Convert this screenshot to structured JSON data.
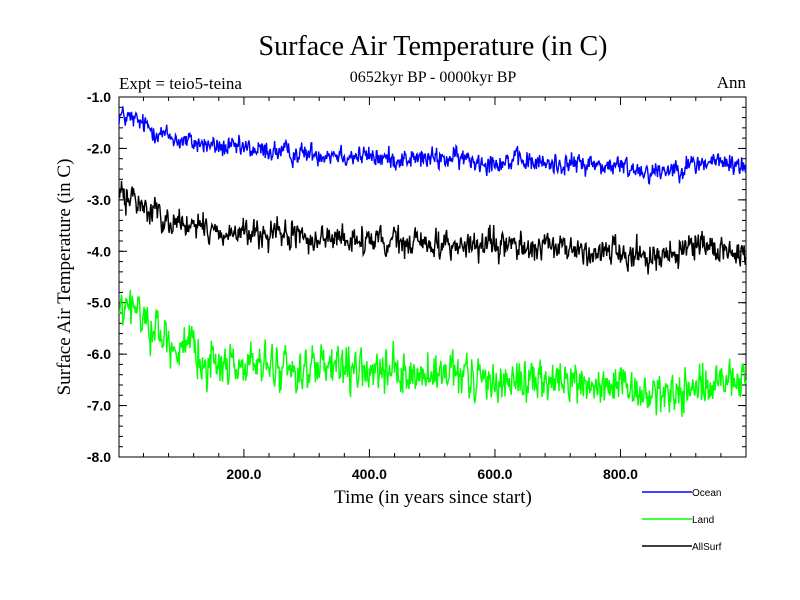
{
  "chart_data": {
    "type": "line",
    "title": "Surface Air Temperature (in C)",
    "subtitle": "0652kyr BP - 0000kyr BP",
    "expt_label": "Expt = teio5-teina",
    "season_label": "Ann",
    "xlabel": "Time (in years since start)",
    "ylabel": "Surface Air Temperature (in C)",
    "xlim": [
      1,
      1000
    ],
    "ylim": [
      -8.0,
      -1.0
    ],
    "xticks": [
      200,
      400,
      600,
      800
    ],
    "xtick_labels": [
      "200.0",
      "400.0",
      "600.0",
      "800.0"
    ],
    "yticks": [
      -1.0,
      -2.0,
      -3.0,
      -4.0,
      -5.0,
      -6.0,
      -7.0,
      -8.0
    ],
    "ytick_labels": [
      "-1.0",
      "-2.0",
      "-3.0",
      "-4.0",
      "-5.0",
      "-6.0",
      "-7.0",
      "-8.0"
    ],
    "series": [
      {
        "name": "Ocean",
        "color": "#0000ff",
        "x": [
          1,
          25,
          50,
          75,
          100,
          125,
          150,
          175,
          200,
          225,
          250,
          275,
          300,
          325,
          350,
          375,
          400,
          425,
          450,
          475,
          500,
          525,
          550,
          575,
          600,
          625,
          650,
          675,
          700,
          725,
          750,
          775,
          800,
          825,
          850,
          875,
          900,
          925,
          950,
          975,
          1000
        ],
        "values": [
          -1.35,
          -1.45,
          -1.6,
          -1.75,
          -1.85,
          -1.9,
          -1.95,
          -2.0,
          -2.0,
          -2.05,
          -2.05,
          -2.1,
          -2.1,
          -2.1,
          -2.1,
          -2.15,
          -2.15,
          -2.2,
          -2.2,
          -2.2,
          -2.2,
          -2.2,
          -2.2,
          -2.25,
          -2.25,
          -2.25,
          -2.25,
          -2.3,
          -2.3,
          -2.3,
          -2.3,
          -2.35,
          -2.35,
          -2.4,
          -2.45,
          -2.4,
          -2.35,
          -2.3,
          -2.25,
          -2.3,
          -2.35
        ]
      },
      {
        "name": "Land",
        "color": "#00ff00",
        "x": [
          1,
          25,
          50,
          75,
          100,
          125,
          150,
          175,
          200,
          225,
          250,
          275,
          300,
          325,
          350,
          375,
          400,
          425,
          450,
          475,
          500,
          525,
          550,
          575,
          600,
          625,
          650,
          675,
          700,
          725,
          750,
          775,
          800,
          825,
          850,
          875,
          900,
          925,
          950,
          975,
          1000
        ],
        "values": [
          -5.2,
          -5.1,
          -5.4,
          -5.7,
          -5.9,
          -6.05,
          -6.15,
          -6.2,
          -6.2,
          -6.25,
          -6.25,
          -6.3,
          -6.3,
          -6.3,
          -6.3,
          -6.35,
          -6.35,
          -6.4,
          -6.4,
          -6.4,
          -6.45,
          -6.45,
          -6.45,
          -6.5,
          -6.5,
          -6.5,
          -6.5,
          -6.55,
          -6.55,
          -6.55,
          -6.6,
          -6.65,
          -6.7,
          -6.75,
          -6.8,
          -6.75,
          -6.7,
          -6.65,
          -6.6,
          -6.55,
          -6.5
        ]
      },
      {
        "name": "AllSurf",
        "color": "#000000",
        "x": [
          1,
          25,
          50,
          75,
          100,
          125,
          150,
          175,
          200,
          225,
          250,
          275,
          300,
          325,
          350,
          375,
          400,
          425,
          450,
          475,
          500,
          525,
          550,
          575,
          600,
          625,
          650,
          675,
          700,
          725,
          750,
          775,
          800,
          825,
          850,
          875,
          900,
          925,
          950,
          975,
          1000
        ],
        "values": [
          -2.9,
          -3.0,
          -3.2,
          -3.35,
          -3.45,
          -3.55,
          -3.6,
          -3.65,
          -3.65,
          -3.7,
          -3.7,
          -3.7,
          -3.75,
          -3.75,
          -3.75,
          -3.8,
          -3.8,
          -3.85,
          -3.85,
          -3.85,
          -3.85,
          -3.85,
          -3.9,
          -3.9,
          -3.9,
          -3.9,
          -3.9,
          -3.95,
          -3.95,
          -3.95,
          -4.0,
          -4.0,
          -4.0,
          -4.05,
          -4.1,
          -4.05,
          -4.0,
          -3.95,
          -3.95,
          -4.0,
          -4.05
        ]
      }
    ],
    "noise": [
      0.15,
      0.3,
      0.2
    ],
    "legend": [
      "Ocean",
      "Land",
      "AllSurf"
    ],
    "legend_position": "bottom-right",
    "grid": false
  }
}
